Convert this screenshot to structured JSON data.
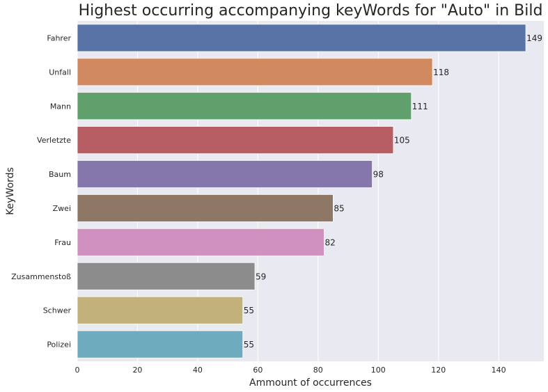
{
  "chart_data": {
    "type": "bar",
    "orientation": "horizontal",
    "title": "Highest occurring accompanying keyWords for \"Auto\" in Bild",
    "xlabel": "Ammount of occurrences",
    "ylabel": "KeyWords",
    "categories": [
      "Fahrer",
      "Unfall",
      "Mann",
      "Verletzte",
      "Baum",
      "Zwei",
      "Frau",
      "Zusammenstoß",
      "Schwer",
      "Polizei"
    ],
    "values": [
      149,
      118,
      111,
      105,
      98,
      85,
      82,
      59,
      55,
      55
    ],
    "data_labels": [
      "149",
      "118",
      "111",
      "105",
      "98",
      "85",
      "82",
      "59",
      "55",
      "55"
    ],
    "colors": [
      "#5874a7",
      "#d1895f",
      "#5fa06c",
      "#b65e63",
      "#8577ab",
      "#8e7765",
      "#d091be",
      "#8c8c8c",
      "#c1b27b",
      "#6fabbf"
    ],
    "xlim": [
      0,
      155
    ],
    "xticks": [
      0,
      20,
      40,
      60,
      80,
      100,
      120,
      140
    ],
    "xtick_labels": [
      "0",
      "20",
      "40",
      "60",
      "80",
      "100",
      "120",
      "140"
    ],
    "grid": true,
    "background": "#e9e9f1",
    "grid_color": "#ffffff"
  }
}
